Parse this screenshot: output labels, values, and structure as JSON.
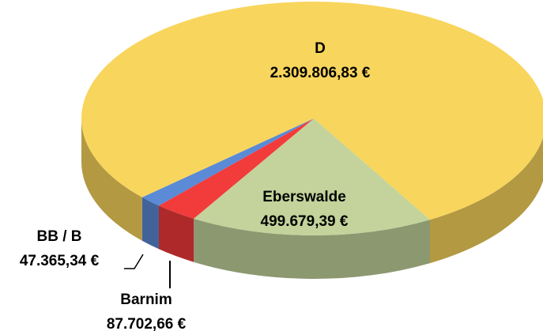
{
  "chart_data": {
    "type": "pie",
    "categories": [
      "Eberswalde",
      "Barnim",
      "BB / B",
      "D"
    ],
    "values": [
      499679.39,
      87702.66,
      47365.34,
      2309806.83
    ],
    "value_labels": [
      "499.679,39 €",
      "87.702,66 €",
      "47.365,34 €",
      "2.309.806,83 €"
    ],
    "colors": [
      "#c3d39b",
      "#f23b3b",
      "#5b8ad6",
      "#f8d55c"
    ]
  }
}
